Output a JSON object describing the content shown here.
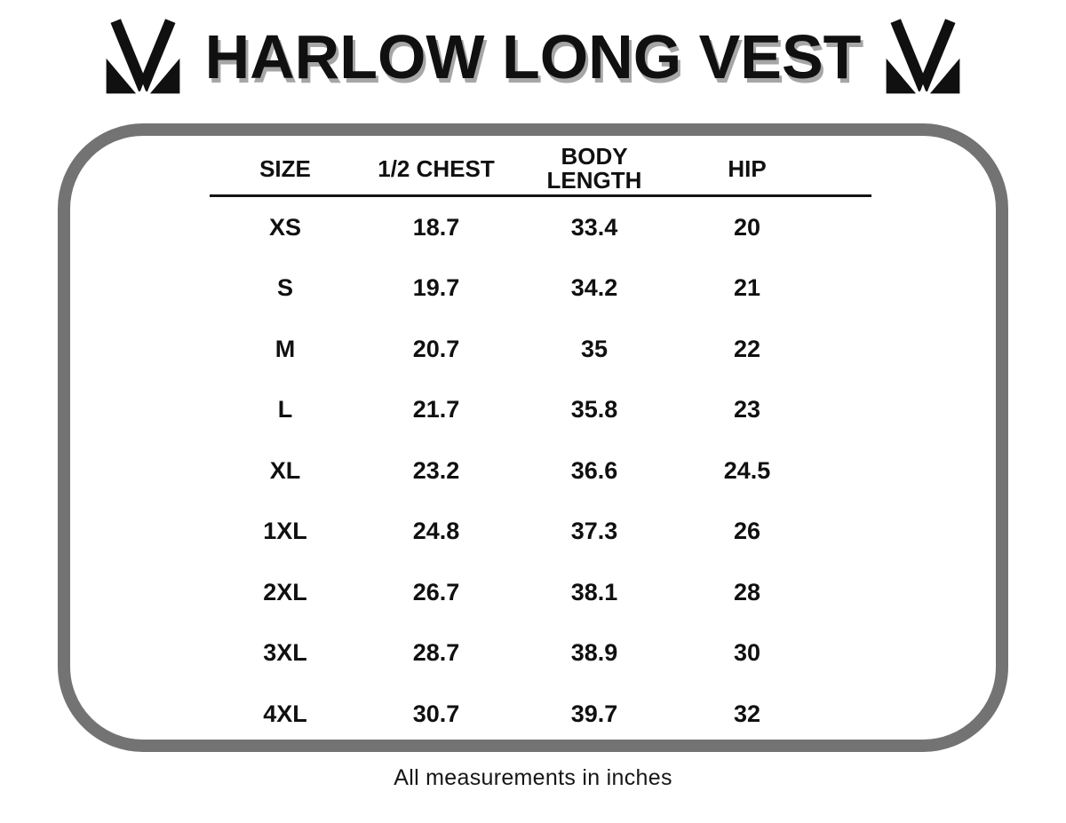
{
  "colors": {
    "border_gray": "#737373",
    "text_ink": "#101010",
    "title_shadow": "#a6a6a6"
  },
  "header": {
    "title": "HARLOW LONG VEST",
    "logo_icon": "brand-m-monogram"
  },
  "chart_data": {
    "type": "table",
    "title": "HARLOW LONG VEST",
    "columns": [
      "SIZE",
      "1/2 CHEST",
      "BODY LENGTH",
      "HIP"
    ],
    "column_lines": [
      [
        "SIZE"
      ],
      [
        "1/2 CHEST"
      ],
      [
        "BODY",
        "LENGTH"
      ],
      [
        "HIP"
      ]
    ],
    "rows": [
      [
        "XS",
        "18.7",
        "33.4",
        "20"
      ],
      [
        "S",
        "19.7",
        "34.2",
        "21"
      ],
      [
        "M",
        "20.7",
        "35",
        "22"
      ],
      [
        "L",
        "21.7",
        "35.8",
        "23"
      ],
      [
        "XL",
        "23.2",
        "36.6",
        "24.5"
      ],
      [
        "1XL",
        "24.8",
        "37.3",
        "26"
      ],
      [
        "2XL",
        "26.7",
        "38.1",
        "28"
      ],
      [
        "3XL",
        "28.7",
        "38.9",
        "30"
      ],
      [
        "4XL",
        "30.7",
        "39.7",
        "32"
      ]
    ],
    "footnote": "All measurements in inches",
    "units": "inches",
    "layout": {
      "grid": "off",
      "header_divider": "on"
    }
  }
}
